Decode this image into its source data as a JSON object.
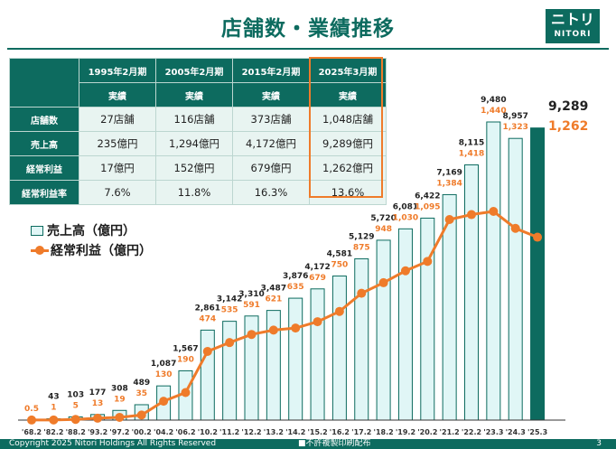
{
  "title": "店舗数・業績推移",
  "logo": {
    "mark": "ニトリ",
    "text": "NITORI"
  },
  "table": {
    "columns": [
      "1995年2月期",
      "2005年2月期",
      "2015年2月期",
      "2025年3月期"
    ],
    "subheader": "実績",
    "rows": [
      {
        "label": "店舗数",
        "values": [
          "27店舗",
          "116店舗",
          "373店舗",
          "1,048店舗"
        ]
      },
      {
        "label": "売上高",
        "values": [
          "235億円",
          "1,294億円",
          "4,172億円",
          "9,289億円"
        ]
      },
      {
        "label": "経常利益",
        "values": [
          "17億円",
          "152億円",
          "679億円",
          "1,262億円"
        ]
      },
      {
        "label": "経常利益率",
        "values": [
          "7.6%",
          "11.8%",
          "16.3%",
          "13.6%"
        ]
      }
    ]
  },
  "legend": {
    "sales": "売上高（億円）",
    "profit": "経常利益（億円）"
  },
  "colors": {
    "accent": "#0d6b5f",
    "bar_fill": "#e0f6f6",
    "profit": "#ef7b2a",
    "highlight": "#ef7b2a"
  },
  "chart_data": {
    "type": "bar",
    "categories": [
      "'68.2",
      "'82.2",
      "'88.2",
      "'93.2",
      "'97.2",
      "'00.2",
      "'04.2",
      "'06.2",
      "'10.2",
      "'11.2",
      "'12.2",
      "'13.2",
      "'14.2",
      "'15.2",
      "'16.2",
      "'17.2",
      "'18.2",
      "'19.2",
      "'20.2",
      "'21.2",
      "'22.2",
      "'23.3",
      "'24.3",
      "'25.3"
    ],
    "series": [
      {
        "name": "売上高（億円）",
        "type": "bar",
        "values": [
          null,
          43,
          103,
          177,
          308,
          489,
          1087,
          1567,
          2861,
          3142,
          3310,
          3487,
          3876,
          4172,
          4581,
          5129,
          5720,
          6081,
          6422,
          7169,
          8115,
          9480,
          8957,
          9289
        ],
        "labels": [
          "",
          "43",
          "103",
          "177",
          "308",
          "489",
          "1,087",
          "1,567",
          "2,861",
          "3,142",
          "3,310",
          "3,487",
          "3,876",
          "4,172",
          "4,581",
          "5,129",
          "5,720",
          "6,081",
          "6,422",
          "7,169",
          "8,115",
          "9,480",
          "8,957",
          "9,289"
        ]
      },
      {
        "name": "経常利益（億円）",
        "type": "line",
        "values": [
          0.5,
          1,
          5,
          13,
          19,
          35,
          130,
          190,
          474,
          535,
          591,
          621,
          635,
          679,
          750,
          875,
          948,
          1030,
          1095,
          1384,
          1418,
          1440,
          1323,
          1262
        ],
        "labels": [
          "0.5",
          "1",
          "5",
          "13",
          "19",
          "35",
          "130",
          "190",
          "474",
          "535",
          "591",
          "621",
          "635",
          "679",
          "750",
          "875",
          "948",
          "1,030",
          "1,095",
          "1,384",
          "1,418",
          "1,440",
          "1,323",
          "1,262"
        ]
      }
    ],
    "last_bar_highlight": true,
    "legend_position": "left"
  },
  "footer": {
    "copyright": "Copyright 2025 Nitori Holdings All Rights Reserved",
    "notice": "■不許複製印刷配布",
    "page": "3"
  }
}
